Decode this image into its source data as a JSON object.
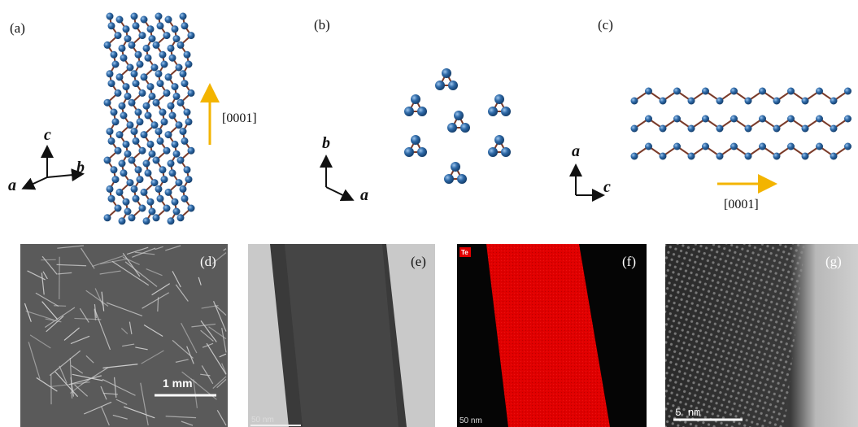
{
  "panels": [
    {
      "label": "(a)",
      "axis_labels": [
        "c",
        "a",
        "b"
      ],
      "direction": "[0001]"
    },
    {
      "label": "(b)",
      "axis_labels": [
        "b",
        "a"
      ]
    },
    {
      "label": "(c)",
      "axis_labels": [
        "a",
        "c"
      ],
      "direction": "[0001]"
    },
    {
      "label": "(d)",
      "scale_bar": "1 mm"
    },
    {
      "label": "(e)",
      "scale_bar": "50 nm"
    },
    {
      "label": "(f)",
      "element": "Te",
      "scale_bar": "50 nm"
    },
    {
      "label": "(g)",
      "scale_bar": "5 nm"
    }
  ]
}
